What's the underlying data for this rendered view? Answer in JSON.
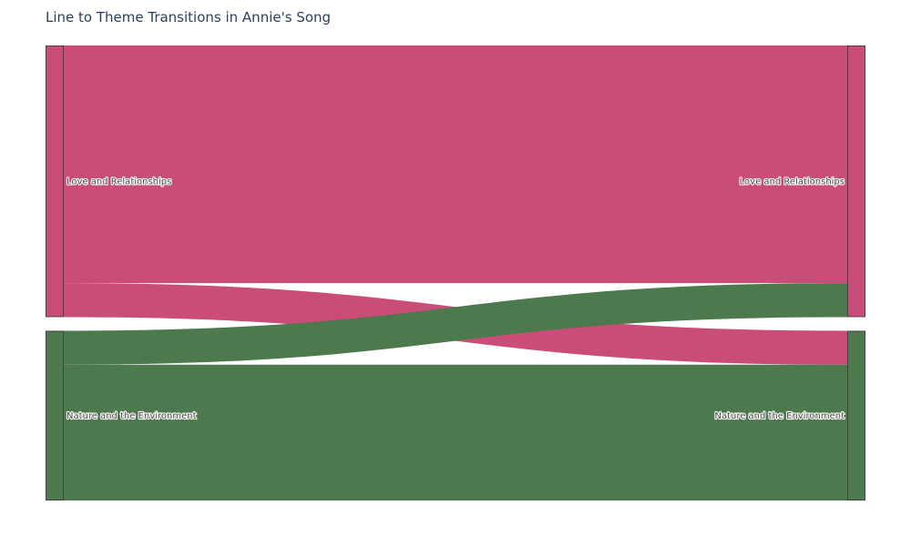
{
  "chart_data": {
    "type": "sankey",
    "title": "Line to Theme Transitions in Annie's Song",
    "nodes": [
      {
        "id": "src_love",
        "label": "Love and Relationships",
        "column": 0,
        "color": "#C94D78"
      },
      {
        "id": "src_nature",
        "label": "Nature and the Environment",
        "column": 0,
        "color": "#4D7A4D"
      },
      {
        "id": "dst_love",
        "label": "Love and Relationships",
        "column": 1,
        "color": "#C94D78"
      },
      {
        "id": "dst_nature",
        "label": "Nature and the Environment",
        "column": 1,
        "color": "#4D7A4D"
      }
    ],
    "links": [
      {
        "source": "src_love",
        "target": "dst_love",
        "value": 7
      },
      {
        "source": "src_love",
        "target": "dst_nature",
        "value": 1
      },
      {
        "source": "src_nature",
        "target": "dst_love",
        "value": 1
      },
      {
        "source": "src_nature",
        "target": "dst_nature",
        "value": 4
      }
    ],
    "colors": {
      "love": "#C94D78",
      "nature": "#4D7A4D",
      "node_border": "#444444",
      "title": "#2a3f5f"
    }
  }
}
